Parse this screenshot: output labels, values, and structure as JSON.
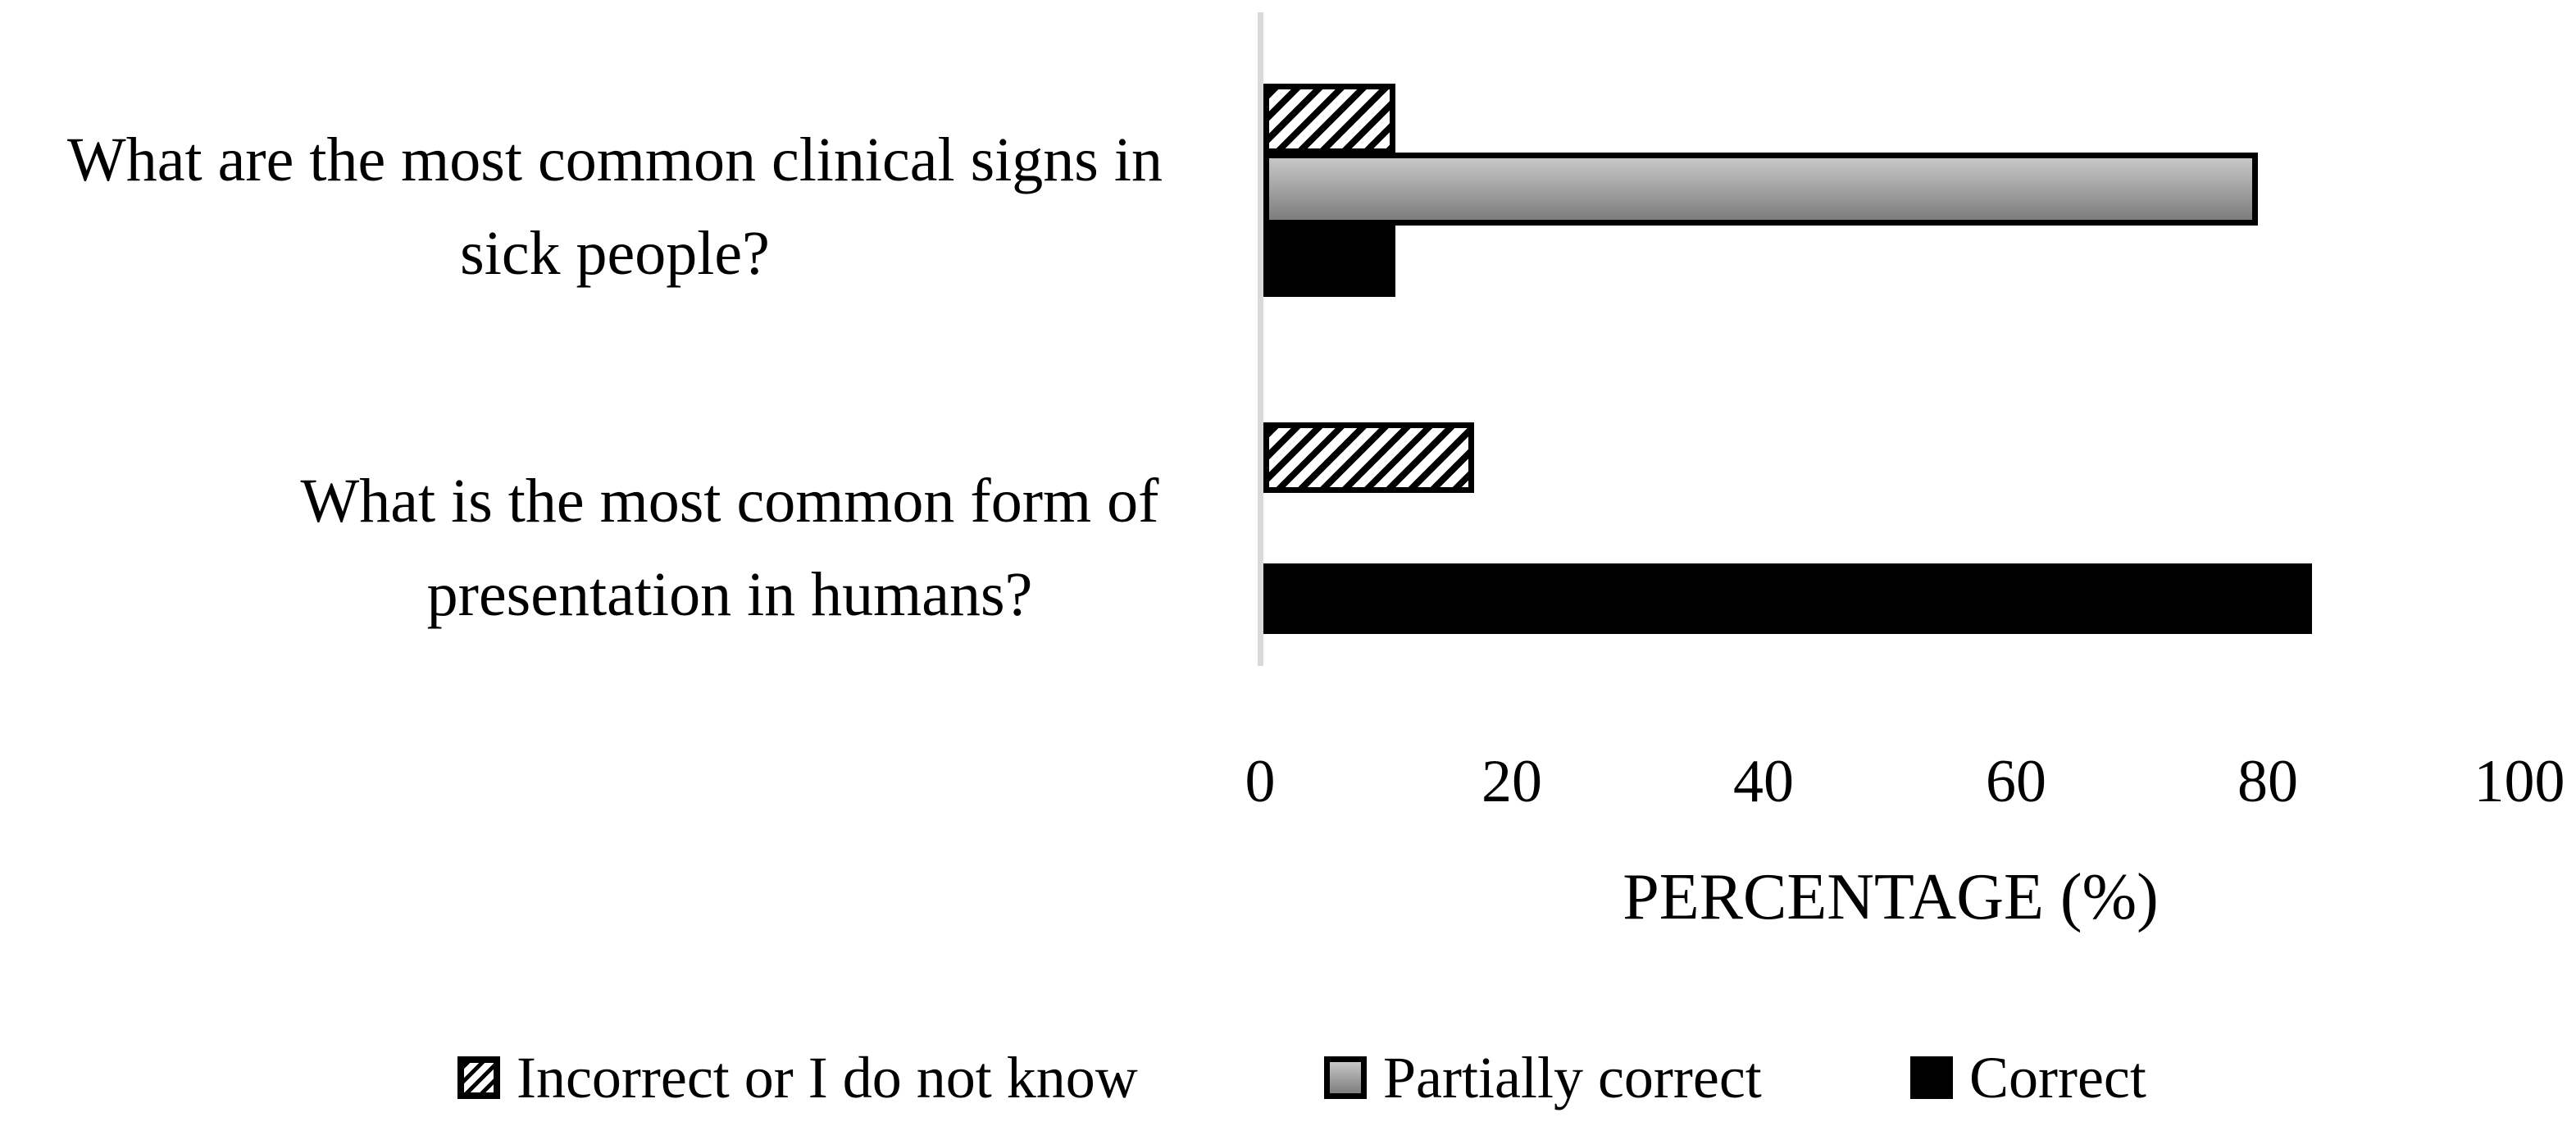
{
  "figure": {
    "background": "#ffffff"
  },
  "chart_data": {
    "type": "bar",
    "orientation": "horizontal",
    "title": "",
    "xlabel": "PERCENTAGE (%)",
    "ylabel": "",
    "xlim": [
      0,
      100
    ],
    "xticks": [
      "0",
      "20",
      "40",
      "60",
      "80",
      "100"
    ],
    "grid": false,
    "legend_position": "bottom",
    "categories": [
      "What are the most common clinical signs in sick people?",
      "What is the most common form of presentation in humans?"
    ],
    "category_lines": [
      [
        "What are the most common clinical signs in",
        "sick people?"
      ],
      [
        "What is the most common form of",
        "presentation in humans?"
      ]
    ],
    "series": [
      {
        "name": "Incorrect or I do not know",
        "style": "diagonal-hatch",
        "values": [
          10.5,
          16.7
        ]
      },
      {
        "name": "Partially correct",
        "style": "gray-gradient",
        "values": [
          79,
          0
        ]
      },
      {
        "name": "Correct",
        "style": "solid-black",
        "values": [
          10.5,
          83.3
        ]
      }
    ],
    "colors": {
      "axis_line": "#d9d9d9",
      "bar_border": "#000000",
      "gray_gradient_top": "#c7c7c7",
      "gray_gradient_bottom": "#7d7d7d",
      "solid_black": "#000000",
      "text": "#000000"
    }
  }
}
